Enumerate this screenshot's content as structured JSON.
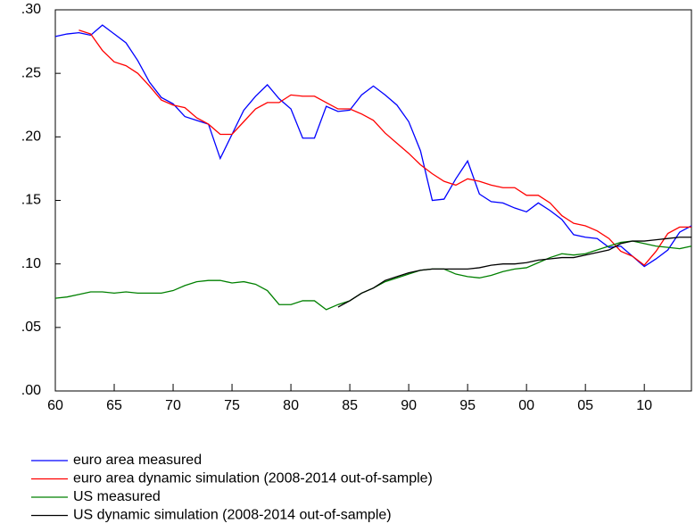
{
  "chart_data": {
    "type": "line",
    "x": [
      1960,
      1961,
      1962,
      1963,
      1964,
      1965,
      1966,
      1967,
      1968,
      1969,
      1970,
      1971,
      1972,
      1973,
      1974,
      1975,
      1976,
      1977,
      1978,
      1979,
      1980,
      1981,
      1982,
      1983,
      1984,
      1985,
      1986,
      1987,
      1988,
      1989,
      1990,
      1991,
      1992,
      1993,
      1994,
      1995,
      1996,
      1997,
      1998,
      1999,
      2000,
      2001,
      2002,
      2003,
      2004,
      2005,
      2006,
      2007,
      2008,
      2009,
      2010,
      2011,
      2012,
      2013,
      2014
    ],
    "series": [
      {
        "name": "euro area measured",
        "color": "#0000ff",
        "values": [
          0.279,
          0.281,
          0.282,
          0.28,
          0.288,
          0.281,
          0.274,
          0.26,
          0.243,
          0.231,
          0.226,
          0.216,
          0.213,
          0.21,
          0.183,
          0.202,
          0.221,
          0.232,
          0.241,
          0.23,
          0.222,
          0.199,
          0.199,
          0.224,
          0.22,
          0.221,
          0.233,
          0.24,
          0.233,
          0.225,
          0.212,
          0.189,
          0.15,
          0.151,
          0.167,
          0.181,
          0.155,
          0.149,
          0.148,
          0.144,
          0.141,
          0.148,
          0.142,
          0.135,
          0.123,
          0.121,
          0.12,
          0.113,
          0.114,
          0.106,
          0.098,
          0.104,
          0.111,
          0.125,
          0.13
        ]
      },
      {
        "name": "euro area dynamic simulation (2008-2014 out-of-sample)",
        "color": "#ff0000",
        "values": [
          null,
          null,
          0.284,
          0.281,
          0.268,
          0.259,
          0.256,
          0.25,
          0.24,
          0.229,
          0.225,
          0.223,
          0.215,
          0.21,
          0.202,
          0.202,
          0.212,
          0.222,
          0.227,
          0.227,
          0.233,
          0.232,
          0.232,
          0.227,
          0.222,
          0.222,
          0.218,
          0.213,
          0.203,
          0.195,
          0.187,
          0.178,
          0.171,
          0.165,
          0.162,
          0.167,
          0.165,
          0.162,
          0.16,
          0.16,
          0.154,
          0.154,
          0.148,
          0.138,
          0.132,
          0.13,
          0.126,
          0.12,
          0.11,
          0.106,
          0.099,
          0.11,
          0.124,
          0.129,
          0.129
        ]
      },
      {
        "name": "US measured",
        "color": "#008000",
        "values": [
          0.073,
          0.074,
          0.076,
          0.078,
          0.078,
          0.077,
          0.078,
          0.077,
          0.077,
          0.077,
          0.079,
          0.083,
          0.086,
          0.087,
          0.087,
          0.085,
          0.086,
          0.084,
          0.079,
          0.068,
          0.068,
          0.071,
          0.071,
          0.064,
          0.068,
          0.071,
          0.077,
          0.081,
          0.086,
          0.089,
          0.092,
          0.095,
          0.096,
          0.096,
          0.092,
          0.09,
          0.089,
          0.091,
          0.094,
          0.096,
          0.097,
          0.101,
          0.105,
          0.108,
          0.107,
          0.108,
          0.111,
          0.114,
          0.117,
          0.118,
          0.116,
          0.114,
          0.113,
          0.112,
          0.114
        ]
      },
      {
        "name": "US dynamic simulation (2008-2014 out-of-sample)",
        "color": "#000000",
        "values": [
          null,
          null,
          null,
          null,
          null,
          null,
          null,
          null,
          null,
          null,
          null,
          null,
          null,
          null,
          null,
          null,
          null,
          null,
          null,
          null,
          null,
          null,
          null,
          null,
          0.066,
          0.071,
          0.077,
          0.081,
          0.087,
          0.09,
          0.093,
          0.095,
          0.096,
          0.096,
          0.096,
          0.096,
          0.097,
          0.099,
          0.1,
          0.1,
          0.101,
          0.103,
          0.104,
          0.105,
          0.105,
          0.107,
          0.109,
          0.111,
          0.116,
          0.118,
          0.118,
          0.119,
          0.12,
          0.121,
          0.121
        ]
      }
    ],
    "xlim": [
      1960,
      2014
    ],
    "xticks": [
      {
        "value": 1960,
        "label": "60"
      },
      {
        "value": 1965,
        "label": "65"
      },
      {
        "value": 1970,
        "label": "70"
      },
      {
        "value": 1975,
        "label": "75"
      },
      {
        "value": 1980,
        "label": "80"
      },
      {
        "value": 1985,
        "label": "85"
      },
      {
        "value": 1990,
        "label": "90"
      },
      {
        "value": 1995,
        "label": "95"
      },
      {
        "value": 2000,
        "label": "00"
      },
      {
        "value": 2005,
        "label": "05"
      },
      {
        "value": 2010,
        "label": "10"
      }
    ],
    "ylim": [
      0,
      0.3
    ],
    "yticks": [
      {
        "value": 0,
        "label": ".00"
      },
      {
        "value": 0.05,
        "label": ".05"
      },
      {
        "value": 0.1,
        "label": ".10"
      },
      {
        "value": 0.15,
        "label": ".15"
      },
      {
        "value": 0.2,
        "label": ".20"
      },
      {
        "value": 0.25,
        "label": ".25"
      },
      {
        "value": 0.3,
        "label": ".30"
      }
    ],
    "legend": "bottom"
  }
}
